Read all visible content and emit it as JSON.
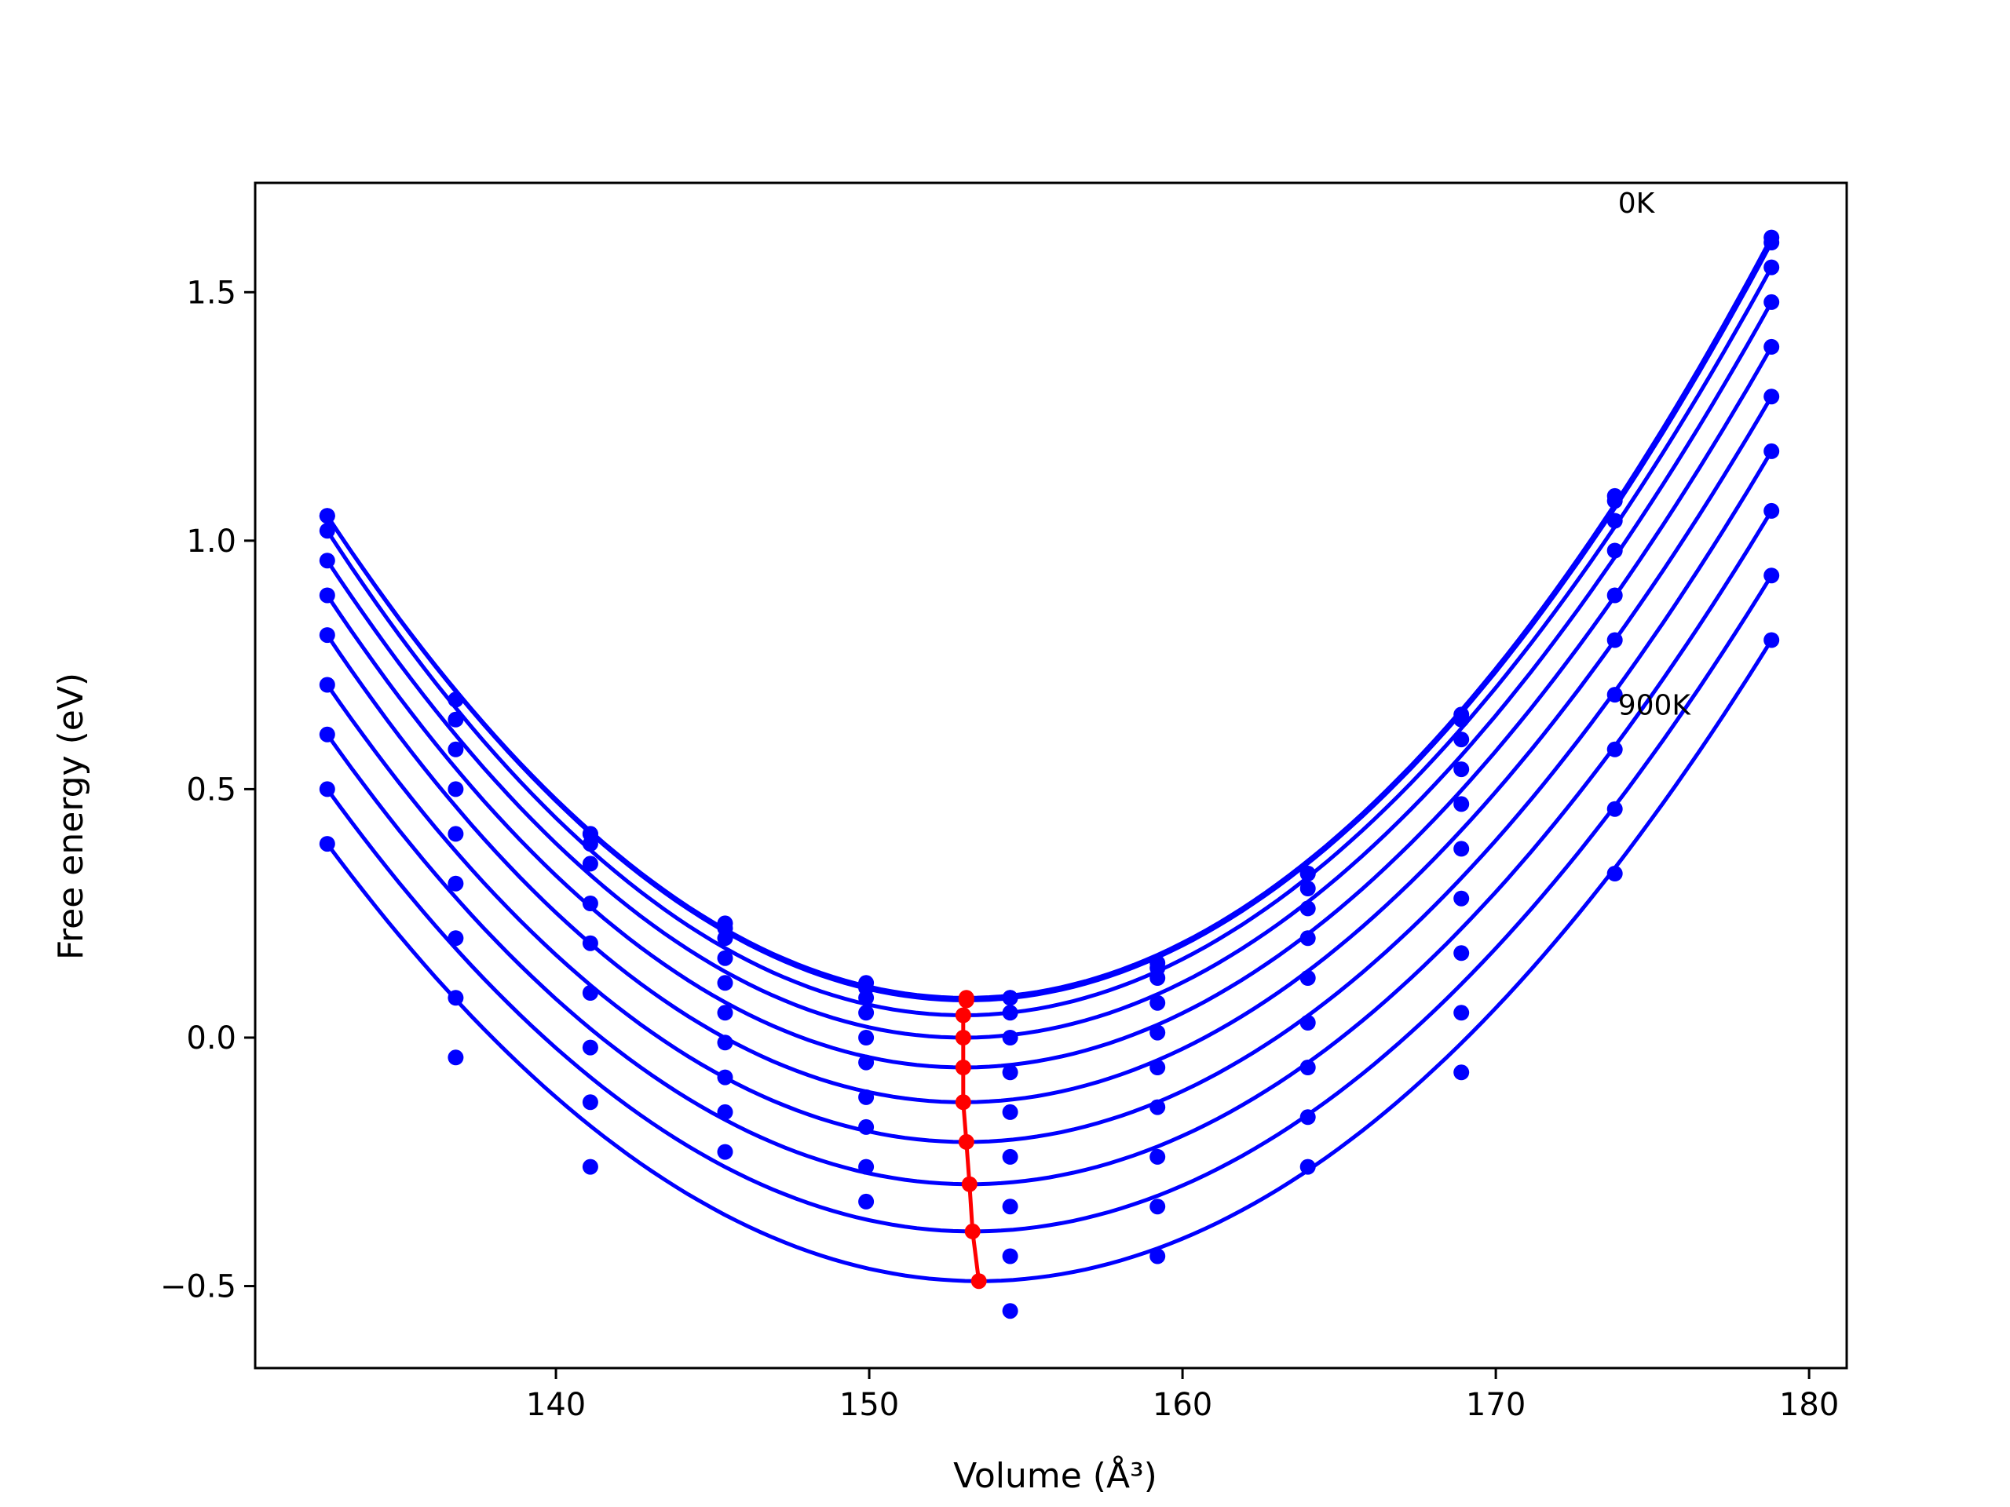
{
  "chart_data": {
    "type": "line",
    "title": "",
    "xlabel": "Volume (Å³)",
    "ylabel": "Free energy (eV)",
    "xlim": [
      130.4,
      181.2
    ],
    "ylim": [
      -0.665,
      1.72
    ],
    "xticks": [
      140,
      150,
      160,
      170,
      180
    ],
    "yticks": [
      -0.5,
      0.0,
      0.5,
      1.0,
      1.5
    ],
    "xtick_labels": [
      "140",
      "150",
      "160",
      "170",
      "180"
    ],
    "ytick_labels": [
      "−0.5",
      "0.0",
      "0.5",
      "1.0",
      "1.5"
    ],
    "grid": false,
    "annotations": [
      {
        "text": "0K",
        "x": 173.9,
        "y": 1.66
      },
      {
        "text": "900K",
        "x": 173.9,
        "y": 0.65
      }
    ],
    "volumes": [
      132.7,
      136.8,
      141.1,
      145.4,
      149.9,
      154.5,
      159.2,
      164.0,
      168.9,
      173.8,
      178.8
    ],
    "series": [
      {
        "temperature_K": 0,
        "energies": [
          1.05,
          0.68,
          0.41,
          0.23,
          0.11,
          0.08,
          0.15,
          0.33,
          0.65,
          1.09,
          1.61
        ],
        "fit_min_volume": 153.1,
        "fit_min_energy": 0.08
      },
      {
        "temperature_K": 100,
        "energies": [
          1.05,
          0.68,
          0.41,
          0.22,
          0.1,
          0.08,
          0.14,
          0.33,
          0.64,
          1.08,
          1.6
        ],
        "fit_min_volume": 153.1,
        "fit_min_energy": 0.075
      },
      {
        "temperature_K": 200,
        "energies": [
          1.02,
          0.64,
          0.39,
          0.2,
          0.08,
          0.05,
          0.12,
          0.3,
          0.6,
          1.04,
          1.55
        ],
        "fit_min_volume": 153.0,
        "fit_min_energy": 0.045
      },
      {
        "temperature_K": 300,
        "energies": [
          0.96,
          0.58,
          0.35,
          0.16,
          0.05,
          0.0,
          0.07,
          0.26,
          0.54,
          0.98,
          1.48
        ],
        "fit_min_volume": 153.0,
        "fit_min_energy": 0.0
      },
      {
        "temperature_K": 400,
        "energies": [
          0.89,
          0.5,
          0.27,
          0.11,
          0.0,
          -0.07,
          0.01,
          0.2,
          0.47,
          0.89,
          1.39
        ],
        "fit_min_volume": 153.0,
        "fit_min_energy": -0.06
      },
      {
        "temperature_K": 500,
        "energies": [
          0.81,
          0.41,
          0.19,
          0.05,
          -0.05,
          -0.15,
          -0.06,
          0.12,
          0.38,
          0.8,
          1.29
        ],
        "fit_min_volume": 153.0,
        "fit_min_energy": -0.13
      },
      {
        "temperature_K": 600,
        "energies": [
          0.71,
          0.31,
          0.09,
          -0.01,
          -0.12,
          -0.24,
          -0.14,
          0.03,
          0.28,
          0.69,
          1.18
        ],
        "fit_min_volume": 153.1,
        "fit_min_energy": -0.21
      },
      {
        "temperature_K": 700,
        "energies": [
          0.61,
          0.2,
          -0.02,
          -0.08,
          -0.18,
          -0.34,
          -0.24,
          -0.06,
          0.17,
          0.58,
          1.06
        ],
        "fit_min_volume": 153.2,
        "fit_min_energy": -0.295
      },
      {
        "temperature_K": 800,
        "energies": [
          0.5,
          0.08,
          -0.13,
          -0.15,
          -0.26,
          -0.44,
          -0.34,
          -0.16,
          0.05,
          0.46,
          0.93
        ],
        "fit_min_volume": 153.3,
        "fit_min_energy": -0.39
      },
      {
        "temperature_K": 900,
        "energies": [
          0.39,
          -0.04,
          -0.26,
          -0.23,
          -0.33,
          -0.55,
          -0.44,
          -0.26,
          -0.07,
          0.33,
          0.8
        ],
        "fit_min_volume": 153.5,
        "fit_min_energy": -0.49
      }
    ],
    "fit_range": [
      132.7,
      178.8
    ],
    "colors": {
      "series": "#0000ff",
      "minima": "#ff0000",
      "axes": "#000000"
    }
  }
}
